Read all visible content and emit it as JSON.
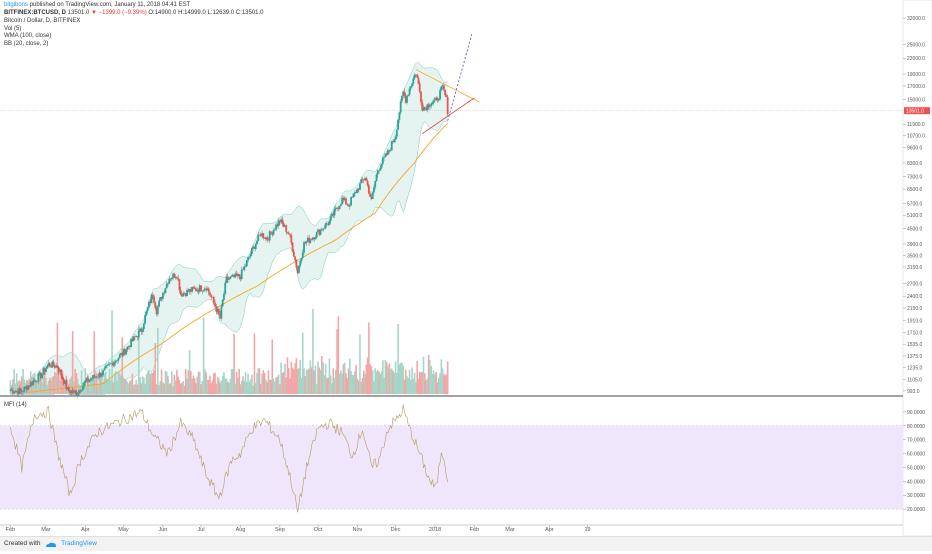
{
  "header": {
    "user": "bitgibons",
    "published_text": "published on TradingView.com, January 11, 2018 04:41 EST",
    "symbol": "BITFINEX:BTCUSD, D",
    "price": "13501.0",
    "change": "▼ −1399.0 (−9.39%)",
    "open": "O:14900.0",
    "high": "H:14999.0",
    "low": "L:12639.0",
    "close": "C:13501.0",
    "indicators": [
      "Bitcoin / Dollar, D, BITFINEX",
      "Vol (5)",
      "WMA (100, close)",
      "BB (20, close, 2)"
    ]
  },
  "footer": {
    "created_with": "Created with",
    "brand": "TradingView",
    "logo_icon": "tradingview-cloud-icon"
  },
  "chart_data": [
    {
      "type": "candlestick",
      "title": "Bitcoin / Dollar, D, BITFINEX",
      "y_scale": "log",
      "ylim": [
        965,
        32000
      ],
      "y_ticks": [
        "32000.0",
        "25000.0",
        "22000.0",
        "19000.0",
        "17000.0",
        "15000.0",
        "11900.0",
        "10700.0",
        "9600.0",
        "8300.0",
        "7300.0",
        "6500.0",
        "5700.0",
        "5100.0",
        "4500.0",
        "3900.0",
        "3500.0",
        "3150.0",
        "2700.0",
        "2400.0",
        "2150.0",
        "1910.0",
        "1710.0",
        "1535.0",
        "1375.0",
        "1235.0",
        "1105.0",
        "993.0"
      ],
      "x_ticks": [
        "Feb",
        "Mar",
        "Apr",
        "May",
        "Jun",
        "Jul",
        "Aug",
        "Sep",
        "Oct",
        "Nov",
        "Dec",
        "2018",
        "Feb",
        "Mar",
        "Apr",
        "19"
      ],
      "price_label": "13501.0",
      "price_level": 13501,
      "close_anchors": [
        [
          "2017-02-01",
          1000
        ],
        [
          "2017-02-10",
          990
        ],
        [
          "2017-02-25",
          1150
        ],
        [
          "2017-03-03",
          1270
        ],
        [
          "2017-03-10",
          1250
        ],
        [
          "2017-03-18",
          1000
        ],
        [
          "2017-03-25",
          970
        ],
        [
          "2017-04-01",
          1080
        ],
        [
          "2017-04-15",
          1180
        ],
        [
          "2017-05-01",
          1420
        ],
        [
          "2017-05-15",
          1750
        ],
        [
          "2017-05-24",
          2450
        ],
        [
          "2017-05-27",
          2100
        ],
        [
          "2017-06-06",
          2850
        ],
        [
          "2017-06-12",
          2950
        ],
        [
          "2017-06-15",
          2450
        ],
        [
          "2017-06-25",
          2550
        ],
        [
          "2017-07-05",
          2620
        ],
        [
          "2017-07-16",
          1950
        ],
        [
          "2017-07-21",
          2800
        ],
        [
          "2017-08-01",
          2900
        ],
        [
          "2017-08-05",
          3200
        ],
        [
          "2017-08-17",
          4300
        ],
        [
          "2017-08-22",
          4100
        ],
        [
          "2017-09-01",
          4850
        ],
        [
          "2017-09-08",
          4300
        ],
        [
          "2017-09-15",
          3000
        ],
        [
          "2017-09-20",
          3900
        ],
        [
          "2017-09-30",
          4300
        ],
        [
          "2017-10-10",
          4800
        ],
        [
          "2017-10-20",
          5900
        ],
        [
          "2017-10-25",
          5600
        ],
        [
          "2017-11-01",
          6500
        ],
        [
          "2017-11-07",
          7300
        ],
        [
          "2017-11-12",
          5800
        ],
        [
          "2017-11-17",
          7800
        ],
        [
          "2017-11-26",
          9300
        ],
        [
          "2017-12-01",
          10800
        ],
        [
          "2017-12-07",
          16000
        ],
        [
          "2017-12-09",
          15000
        ],
        [
          "2017-12-17",
          19300
        ],
        [
          "2017-12-22",
          14000
        ],
        [
          "2017-12-24",
          13900
        ],
        [
          "2017-12-28",
          14500
        ],
        [
          "2018-01-02",
          14800
        ],
        [
          "2018-01-07",
          16700
        ],
        [
          "2018-01-10",
          14900
        ],
        [
          "2018-01-11",
          13501
        ]
      ],
      "wma_anchors": [
        [
          "2017-02-15",
          980
        ],
        [
          "2017-04-15",
          1060
        ],
        [
          "2017-06-01",
          1550
        ],
        [
          "2017-07-15",
          2180
        ],
        [
          "2017-08-15",
          2650
        ],
        [
          "2017-09-15",
          3350
        ],
        [
          "2017-10-15",
          4050
        ],
        [
          "2017-11-15",
          5200
        ],
        [
          "2017-12-15",
          8200
        ],
        [
          "2018-01-11",
          12000
        ]
      ],
      "trendlines": [
        {
          "name": "upper resistance",
          "color": "#f5a623",
          "from": [
            "2017-12-17",
            19800
          ],
          "to": [
            "2018-02-05",
            14600
          ]
        },
        {
          "name": "lower support",
          "color": "#e53935",
          "from": [
            "2017-12-22",
            10900
          ],
          "to": [
            "2018-02-01",
            15200
          ]
        },
        {
          "name": "projection",
          "color": "#3f51b5",
          "style": "dashed",
          "from": [
            "2018-01-11",
            12300
          ],
          "to": [
            "2018-01-30",
            27500
          ]
        }
      ],
      "colors": {
        "up": "#26a69a",
        "down": "#ef5350",
        "bb_fill": "#dff1ee",
        "bb_line": "#7bc9bd",
        "wma": "#f5a623",
        "sma": "#e57373"
      }
    },
    {
      "type": "line",
      "title": "MFI (14)",
      "ylim": [
        10,
        100
      ],
      "band": [
        20,
        80
      ],
      "y_ticks": [
        "90.0000",
        "80.0000",
        "70.0000",
        "60.0000",
        "50.0000",
        "40.0000",
        "30.0000",
        "20.0000"
      ],
      "mfi_anchors": [
        [
          "2017-02-01",
          80
        ],
        [
          "2017-02-10",
          50
        ],
        [
          "2017-02-20",
          88
        ],
        [
          "2017-03-03",
          90
        ],
        [
          "2017-03-10",
          62
        ],
        [
          "2017-03-20",
          30
        ],
        [
          "2017-03-28",
          55
        ],
        [
          "2017-04-10",
          75
        ],
        [
          "2017-04-25",
          82
        ],
        [
          "2017-05-05",
          86
        ],
        [
          "2017-05-15",
          90
        ],
        [
          "2017-05-25",
          72
        ],
        [
          "2017-06-05",
          60
        ],
        [
          "2017-06-15",
          82
        ],
        [
          "2017-06-25",
          70
        ],
        [
          "2017-07-05",
          45
        ],
        [
          "2017-07-15",
          28
        ],
        [
          "2017-07-25",
          55
        ],
        [
          "2017-08-01",
          60
        ],
        [
          "2017-08-10",
          78
        ],
        [
          "2017-08-20",
          84
        ],
        [
          "2017-09-01",
          70
        ],
        [
          "2017-09-10",
          40
        ],
        [
          "2017-09-15",
          18
        ],
        [
          "2017-09-22",
          50
        ],
        [
          "2017-10-01",
          78
        ],
        [
          "2017-10-10",
          82
        ],
        [
          "2017-10-20",
          75
        ],
        [
          "2017-10-28",
          58
        ],
        [
          "2017-11-05",
          78
        ],
        [
          "2017-11-12",
          50
        ],
        [
          "2017-11-18",
          55
        ],
        [
          "2017-11-25",
          78
        ],
        [
          "2017-12-03",
          86
        ],
        [
          "2017-12-07",
          92
        ],
        [
          "2017-12-12",
          78
        ],
        [
          "2017-12-20",
          60
        ],
        [
          "2017-12-28",
          40
        ],
        [
          "2018-01-02",
          35
        ],
        [
          "2018-01-06",
          62
        ],
        [
          "2018-01-08",
          58
        ],
        [
          "2018-01-11",
          42
        ]
      ],
      "line_color": "#b59a5c",
      "band_color": "#efe6fb"
    }
  ]
}
